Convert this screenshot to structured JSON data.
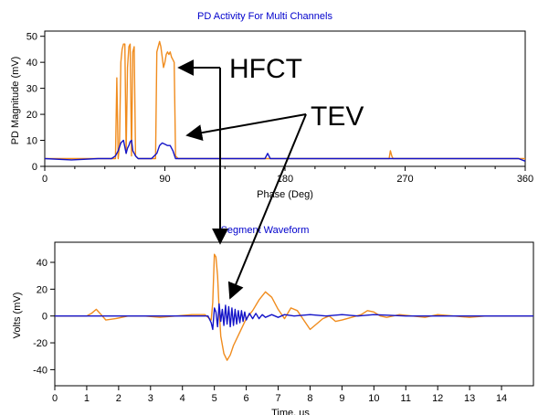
{
  "colors": {
    "hfct": "#f08c1e",
    "tev": "#1414c8",
    "title": "#0000cc",
    "arrow": "#000000"
  },
  "annotations": {
    "hfct_label": "HFCT",
    "tev_label": "TEV"
  },
  "chart_data": [
    {
      "type": "line",
      "title": "PD Activity For Multi Channels",
      "xlabel": "Phase (Deg)",
      "ylabel": "PD Magnitude (mV)",
      "xlim": [
        0,
        360
      ],
      "ylim": [
        0,
        52
      ],
      "x_ticks": [
        0,
        90,
        180,
        270,
        360
      ],
      "y_ticks": [
        0,
        10,
        20,
        30,
        40,
        50
      ],
      "grid": false,
      "series": [
        {
          "color": "#f08c1e",
          "x": [
            0,
            50,
            53,
            54,
            55,
            56,
            57,
            58,
            59,
            60,
            61,
            62,
            63,
            64,
            65,
            66,
            67,
            68,
            70,
            80,
            83,
            84,
            85,
            86,
            87,
            88,
            89,
            90,
            91,
            92,
            93,
            94,
            95,
            96,
            97,
            98,
            100,
            120,
            150,
            180,
            200,
            240,
            258,
            259,
            260,
            261,
            262,
            280,
            320,
            355,
            360
          ],
          "y": [
            3,
            3,
            3,
            34,
            3,
            8,
            40,
            45,
            47,
            47,
            5,
            38,
            46,
            47,
            4,
            44,
            46,
            4,
            3,
            3,
            3,
            44,
            46,
            48,
            46,
            42,
            38,
            40,
            43,
            44,
            43,
            44,
            42,
            41,
            40,
            4,
            3,
            3,
            3,
            3,
            3,
            3,
            3,
            6,
            4,
            3,
            3,
            3,
            3,
            3,
            3
          ]
        },
        {
          "color": "#1414c8",
          "x": [
            0,
            20,
            40,
            50,
            53,
            55,
            57,
            59,
            61,
            62,
            63,
            64,
            65,
            66,
            68,
            70,
            80,
            84,
            86,
            88,
            90,
            92,
            94,
            96,
            98,
            100,
            120,
            150,
            165,
            167,
            169,
            200,
            240,
            260,
            280,
            320,
            355,
            360
          ],
          "y": [
            3,
            2.5,
            3,
            3,
            4,
            6,
            9,
            10,
            5,
            7,
            8,
            9.5,
            10,
            6,
            4,
            3,
            3,
            5,
            8,
            9,
            8.5,
            8,
            8,
            6,
            3,
            3,
            3,
            3,
            3,
            5,
            3,
            3,
            3,
            3,
            3,
            3,
            3,
            2
          ]
        }
      ]
    },
    {
      "type": "line",
      "title": "Segment Waveform",
      "xlabel": "Time, us",
      "ylabel": "Volts (mV)",
      "xlim": [
        0,
        15
      ],
      "ylim": [
        -52,
        55
      ],
      "x_ticks": [
        0,
        1,
        2,
        3,
        4,
        5,
        6,
        7,
        8,
        9,
        10,
        11,
        12,
        13,
        14
      ],
      "y_ticks": [
        40,
        20,
        0,
        -20,
        -40
      ],
      "grid": false,
      "series": [
        {
          "color": "#f08c1e",
          "x": [
            0,
            0.5,
            1.0,
            1.15,
            1.3,
            1.45,
            1.6,
            1.9,
            2.3,
            2.8,
            3.3,
            3.8,
            4.3,
            4.7,
            4.9,
            4.95,
            5.0,
            5.05,
            5.1,
            5.15,
            5.2,
            5.3,
            5.4,
            5.5,
            5.6,
            5.8,
            6.0,
            6.2,
            6.4,
            6.6,
            6.8,
            7.0,
            7.2,
            7.4,
            7.6,
            7.8,
            8.0,
            8.2,
            8.4,
            8.6,
            8.8,
            9.0,
            9.3,
            9.6,
            9.8,
            10.0,
            10.2,
            10.4,
            10.8,
            11.2,
            11.6,
            12.0,
            12.5,
            13.0,
            13.5,
            14.0,
            14.5,
            15.0
          ],
          "y": [
            0,
            0,
            0,
            2,
            5,
            1,
            -3,
            -2,
            0,
            0,
            -1,
            0,
            1,
            1,
            -3,
            10,
            46,
            44,
            30,
            5,
            -15,
            -28,
            -33,
            -29,
            -22,
            -12,
            -2,
            4,
            12,
            18,
            14,
            5,
            -2,
            6,
            4,
            -3,
            -10,
            -6,
            -2,
            0,
            -4,
            -3,
            -1,
            1,
            4,
            3,
            0,
            -1,
            1,
            0,
            -1,
            1,
            0,
            -1,
            0,
            0,
            0,
            0
          ]
        },
        {
          "color": "#1414c8",
          "x": [
            0,
            4.5,
            4.8,
            4.9,
            4.95,
            5.0,
            5.05,
            5.1,
            5.15,
            5.2,
            5.25,
            5.3,
            5.35,
            5.4,
            5.45,
            5.5,
            5.55,
            5.6,
            5.65,
            5.7,
            5.75,
            5.8,
            5.85,
            5.9,
            5.95,
            6.0,
            6.1,
            6.2,
            6.3,
            6.4,
            6.5,
            6.6,
            6.8,
            7.0,
            7.2,
            7.5,
            8.0,
            8.5,
            9.0,
            9.5,
            10.0,
            11.0,
            12.0,
            13.0,
            14.0,
            15.0
          ],
          "y": [
            0,
            0,
            0,
            -5,
            -10,
            6,
            3,
            -8,
            9,
            -4,
            5,
            -7,
            8,
            -6,
            7,
            -8,
            6,
            -7,
            5,
            -6,
            4,
            -5,
            4,
            -4,
            3,
            -3,
            2,
            -2,
            2,
            -2,
            1,
            -1,
            1,
            -1,
            1,
            0,
            1,
            0,
            1,
            0,
            1,
            0,
            0,
            0,
            0,
            0
          ]
        }
      ]
    }
  ]
}
